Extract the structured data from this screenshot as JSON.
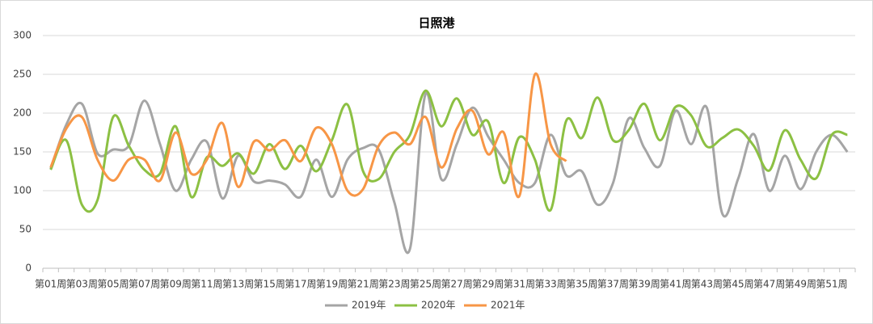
{
  "chart_data": {
    "type": "line",
    "title": "日照港",
    "categories": [
      "第01周",
      null,
      "第03周",
      null,
      "第05周",
      null,
      "第07周",
      null,
      "第09周",
      null,
      "第11周",
      null,
      "第13周",
      null,
      "第15周",
      null,
      "第17周",
      null,
      "第19周",
      null,
      "第21周",
      null,
      "第23周",
      null,
      "第25周",
      null,
      "第27周",
      null,
      "第29周",
      null,
      "第31周",
      null,
      "第33周",
      null,
      "第35周",
      null,
      "第37周",
      null,
      "第39周",
      null,
      "第41周",
      null,
      "第43周",
      null,
      "第45周",
      null,
      "第47周",
      null,
      "第49周",
      null,
      "第51周",
      null
    ],
    "series": [
      {
        "name": "2019年",
        "color": "#a5a5a5",
        "values": [
          128,
          185,
          212,
          148,
          153,
          158,
          216,
          160,
          100,
          140,
          163,
          90,
          145,
          112,
          113,
          108,
          92,
          140,
          92,
          140,
          155,
          153,
          85,
          25,
          225,
          115,
          160,
          207,
          170,
          140,
          110,
          110,
          172,
          120,
          125,
          82,
          110,
          193,
          155,
          132,
          203,
          160,
          207,
          70,
          115,
          173,
          100,
          145,
          102,
          150,
          172,
          150
        ]
      },
      {
        "name": "2020年",
        "color": "#8cc043",
        "values": [
          127,
          165,
          82,
          88,
          195,
          158,
          127,
          122,
          183,
          92,
          143,
          132,
          148,
          122,
          160,
          128,
          158,
          125,
          165,
          211,
          125,
          115,
          150,
          172,
          229,
          183,
          219,
          172,
          189,
          110,
          169,
          140,
          75,
          190,
          168,
          220,
          165,
          178,
          212,
          165,
          208,
          197,
          157,
          168,
          179,
          158,
          126,
          178,
          140,
          116,
          172,
          172
        ]
      },
      {
        "name": "2021年",
        "color": "#f79646",
        "values": [
          130,
          180,
          195,
          140,
          113,
          140,
          140,
          113,
          175,
          122,
          140,
          187,
          105,
          163,
          152,
          165,
          138,
          181,
          160,
          100,
          102,
          158,
          175,
          160,
          195,
          130,
          180,
          203,
          147,
          175,
          93,
          250,
          160,
          138,
          null,
          null,
          null,
          null,
          null,
          null,
          null,
          null,
          null,
          null,
          null,
          null,
          null,
          null,
          null,
          null,
          null,
          null
        ]
      }
    ],
    "ylim": [
      0,
      300
    ],
    "yticks": [
      0,
      50,
      100,
      150,
      200,
      250,
      300
    ],
    "grid": true
  }
}
